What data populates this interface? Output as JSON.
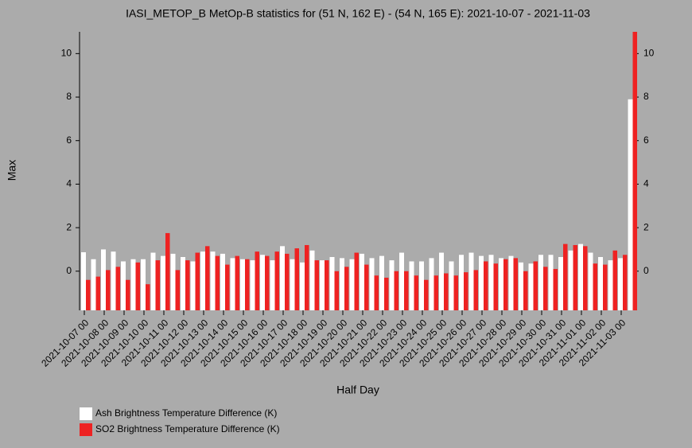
{
  "chart_data": {
    "type": "bar",
    "title": "IASI_METOP_B MetOp-B statistics for (51 N, 162 E) - (54 N, 165 E): 2021-10-07 - 2021-11-03",
    "x_label": "Half Day",
    "y_label": "Max",
    "categories": [
      "2021-10-07 00",
      null,
      "2021-10-08 00",
      null,
      "2021-10-09 00",
      null,
      "2021-10-10 00",
      null,
      "2021-10-11 00",
      null,
      "2021-10-12 00",
      null,
      "2021-10-13 00",
      null,
      "2021-10-14 00",
      null,
      "2021-10-15 00",
      null,
      "2021-10-16 00",
      null,
      "2021-10-17 00",
      null,
      "2021-10-18 00",
      null,
      "2021-10-19 00",
      null,
      "2021-10-20 00",
      null,
      "2021-10-21 00",
      null,
      "2021-10-22 00",
      null,
      "2021-10-23 00",
      null,
      "2021-10-24 00",
      null,
      "2021-10-25 00",
      null,
      "2021-10-26 00",
      null,
      "2021-10-27 00",
      null,
      "2021-10-28 00",
      null,
      "2021-10-29 00",
      null,
      "2021-10-30 00",
      null,
      "2021-10-31 00",
      null,
      "2021-11-01 00",
      null,
      "2021-11-02 00",
      null,
      "2021-11-03 00",
      null
    ],
    "series": [
      {
        "name": "Ash Brightness Temperature Difference (K)",
        "color": "#ffffff",
        "values": [
          0.87,
          0.55,
          1.0,
          0.9,
          0.45,
          0.55,
          0.55,
          0.85,
          0.7,
          0.8,
          0.65,
          0.45,
          0.9,
          0.9,
          0.8,
          0.6,
          0.55,
          0.5,
          0.75,
          0.5,
          1.15,
          0.55,
          0.4,
          0.95,
          0.5,
          0.65,
          0.6,
          0.55,
          0.8,
          0.6,
          0.7,
          0.5,
          0.85,
          0.45,
          0.45,
          0.6,
          0.85,
          0.45,
          0.75,
          0.85,
          0.7,
          0.75,
          0.6,
          0.7,
          0.4,
          0.35,
          0.75,
          0.75,
          0.65,
          0.95,
          1.25,
          0.85,
          0.65,
          0.5,
          0.6,
          7.9
        ]
      },
      {
        "name": "SO2 Brightness Temperature Difference (K)",
        "color": "#ee2222",
        "values": [
          -0.4,
          -0.25,
          0.05,
          0.2,
          -0.4,
          0.4,
          -0.6,
          0.5,
          1.75,
          0.05,
          0.5,
          0.85,
          1.15,
          0.7,
          0.3,
          0.7,
          0.55,
          0.9,
          0.7,
          0.9,
          0.8,
          1.05,
          1.2,
          0.5,
          0.5,
          0.0,
          0.2,
          0.85,
          0.3,
          -0.2,
          -0.3,
          0.0,
          0.0,
          -0.2,
          -0.4,
          -0.2,
          -0.1,
          -0.2,
          -0.05,
          0.05,
          0.45,
          0.35,
          0.55,
          0.6,
          0.0,
          0.45,
          0.2,
          0.1,
          1.25,
          1.2,
          1.15,
          0.35,
          0.3,
          0.95,
          0.75,
          11
        ]
      }
    ],
    "ylim": [
      -1.8,
      11
    ],
    "yticks": [
      0,
      2,
      4,
      6,
      8,
      10
    ],
    "legend": "bottom-left"
  }
}
